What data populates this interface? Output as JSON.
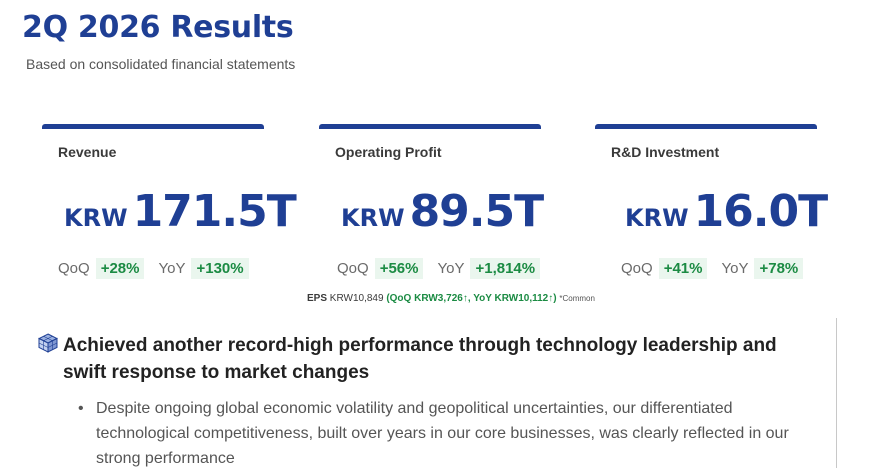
{
  "title": "2Q 2026 Results",
  "subtitle": "Based on consolidated financial statements",
  "cards": [
    {
      "label": "Revenue",
      "unit": "KRW",
      "value": "171.5T",
      "qoq_label": "QoQ",
      "qoq": "+28%",
      "yoy_label": "YoY",
      "yoy": "+130%"
    },
    {
      "label": "Operating Profit",
      "unit": "KRW",
      "value": "89.5T",
      "qoq_label": "QoQ",
      "qoq": "+56%",
      "yoy_label": "YoY",
      "yoy": "+1,814%"
    },
    {
      "label": "R&D Investment",
      "unit": "KRW",
      "value": "16.0T",
      "qoq_label": "QoQ",
      "qoq": "+41%",
      "yoy_label": "YoY",
      "yoy": "+78%"
    }
  ],
  "eps": {
    "label": "EPS",
    "value": "KRW10,849",
    "change": "(QoQ KRW3,726↑, YoY KRW10,112↑)",
    "note": "*Common"
  },
  "headline": "Achieved another record-high performance through technology leadership and swift response to market changes",
  "bullets": [
    "Despite ongoing global economic volatility and geopolitical uncertainties, our differentiated technological competitiveness, built over years in our core businesses, was clearly reflected in our strong performance"
  ],
  "colors": {
    "brand": "#1f3f94",
    "positive": "#1b8b43",
    "positive_bg": "#eaf6ee"
  },
  "icons": {
    "headline": "cube-grid-icon"
  }
}
